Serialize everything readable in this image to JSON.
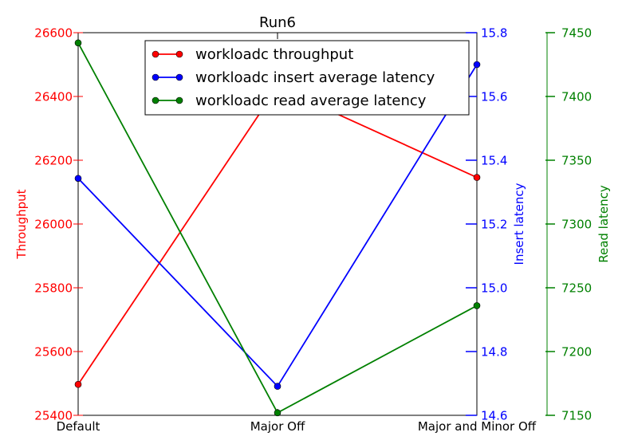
{
  "chart_data": {
    "type": "line",
    "title": "Run6",
    "categories": [
      "Default",
      "Major Off",
      "Major and Minor Off"
    ],
    "axes": {
      "left": {
        "label": "Throughput",
        "color": "#ff0000",
        "lim": [
          25400,
          26600
        ],
        "ticks": [
          "25400",
          "25600",
          "25800",
          "26000",
          "26200",
          "26400",
          "26600"
        ]
      },
      "right1": {
        "label": "Insert latency",
        "color": "#0000ff",
        "lim": [
          14.6,
          15.8
        ],
        "ticks": [
          "14.6",
          "14.8",
          "15.0",
          "15.2",
          "15.4",
          "15.6",
          "15.8"
        ]
      },
      "right2": {
        "label": "Read latency",
        "color": "#008000",
        "lim": [
          7150,
          7450
        ],
        "ticks": [
          "7150",
          "7200",
          "7250",
          "7300",
          "7350",
          "7400",
          "7450"
        ]
      }
    },
    "series": [
      {
        "name": "workloadc throughput",
        "axis": "left",
        "color": "#ff0000",
        "values": [
          25497,
          26430,
          26146
        ]
      },
      {
        "name": "workloadc insert average latency",
        "axis": "right1",
        "color": "#0000ff",
        "values": [
          15.343,
          14.691,
          15.7
        ]
      },
      {
        "name": "workloadc read average latency",
        "axis": "right2",
        "color": "#008000",
        "values": [
          7442,
          7152,
          7236
        ]
      }
    ],
    "legend_position": "top-center",
    "grid": false
  }
}
